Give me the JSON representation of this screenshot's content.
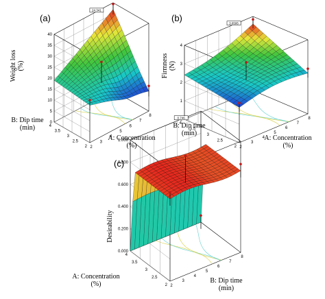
{
  "figure": {
    "panels": [
      "(a)",
      "(b)",
      "(c)"
    ]
  },
  "colors": {
    "low": "#1f3ad6",
    "mid_low": "#18c8c8",
    "mid": "#3ec63e",
    "mid_high": "#e8e83a",
    "high": "#e8281e",
    "floor": "#6e6e6e",
    "design_point": "#c01818"
  },
  "chart_data": [
    {
      "type": "surface3d",
      "panel": "(a)",
      "zlabel": "Weight loss\n(%)",
      "xlabel": "A: Concentration\n(%)",
      "ylabel": "B: Dip time\n(min)",
      "x_ticks": [
        "2",
        "3",
        "4",
        "5",
        "6",
        "7",
        "8"
      ],
      "y_ticks": [
        "2",
        "2.5",
        "3",
        "3.5",
        "4"
      ],
      "z_ticks": [
        "0",
        "5",
        "10",
        "15",
        "20",
        "25",
        "30",
        "35",
        "40"
      ],
      "xlim": [
        2,
        8
      ],
      "ylim": [
        2,
        4
      ],
      "zlim": [
        0,
        40
      ],
      "corner_values": {
        "x2_y2": 17,
        "x8_y2": 9,
        "x2_y4": 19,
        "x8_y4": 37
      },
      "surface_min": 10,
      "peak_label": "24.341"
    },
    {
      "type": "surface3d",
      "panel": "(b)",
      "zlabel": "Firmness\n(N)",
      "xlabel": "A: Concentration\n(%)",
      "ylabel": "B: Dip time\n(min)",
      "x_ticks": [
        "2",
        "3",
        "4",
        "5",
        "6",
        "7",
        "8"
      ],
      "y_ticks": [
        "2",
        "2.5",
        "3",
        "3.5",
        "4"
      ],
      "z_ticks": [
        "0",
        "1",
        "2",
        "3",
        "4"
      ],
      "xlim": [
        2,
        8
      ],
      "ylim": [
        2,
        4
      ],
      "zlim": [
        0,
        4
      ],
      "corner_values": {
        "x2_y2": 1.9,
        "x8_y2": 2.2,
        "x2_y4": 2.4,
        "x8_y4": 3.6
      },
      "peak_label": "3.6595"
    },
    {
      "type": "surface3d",
      "panel": "(c)",
      "zlabel": "Desirability",
      "xlabel": "A: Concentration\n(%)",
      "ylabel": "B: Dip time\n(min)",
      "x_ticks": [
        "2",
        "3",
        "4",
        "5",
        "6",
        "7",
        "8"
      ],
      "y_ticks": [
        "2",
        "2.5",
        "3",
        "3.5",
        "4"
      ],
      "z_ticks": [
        "0.000",
        "0.200",
        "0.400",
        "0.600",
        "0.800",
        "1.000"
      ],
      "xlim": [
        2,
        8
      ],
      "ylim": [
        2,
        4
      ],
      "zlim": [
        0,
        1
      ],
      "plateau_value": 0.74,
      "peak_label": "0.746"
    }
  ]
}
